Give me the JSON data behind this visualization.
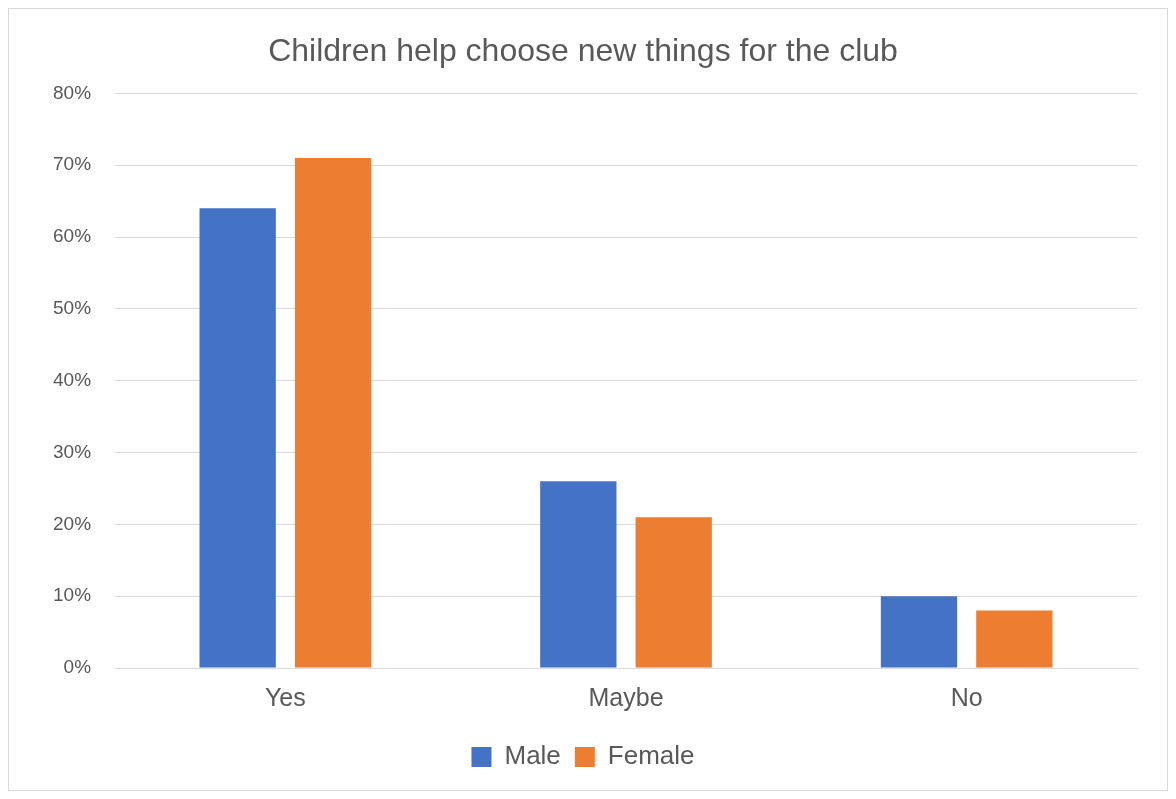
{
  "chart_data": {
    "type": "bar",
    "title": "Children help choose new things for the club",
    "categories": [
      "Yes",
      "Maybe",
      "No"
    ],
    "series": [
      {
        "name": "Male",
        "color": "#4472c4",
        "values": [
          64,
          26,
          10
        ]
      },
      {
        "name": "Female",
        "color": "#ed7d31",
        "values": [
          71,
          21,
          8
        ]
      }
    ],
    "ylim": [
      0,
      80
    ],
    "yticks": [
      {
        "value": 0,
        "label": "0%"
      },
      {
        "value": 10,
        "label": "10%"
      },
      {
        "value": 20,
        "label": "20%"
      },
      {
        "value": 30,
        "label": "30%"
      },
      {
        "value": 40,
        "label": "40%"
      },
      {
        "value": 50,
        "label": "50%"
      },
      {
        "value": 60,
        "label": "60%"
      },
      {
        "value": 70,
        "label": "70%"
      },
      {
        "value": 80,
        "label": "80%"
      }
    ],
    "grid": "y",
    "legend": "bottom"
  }
}
